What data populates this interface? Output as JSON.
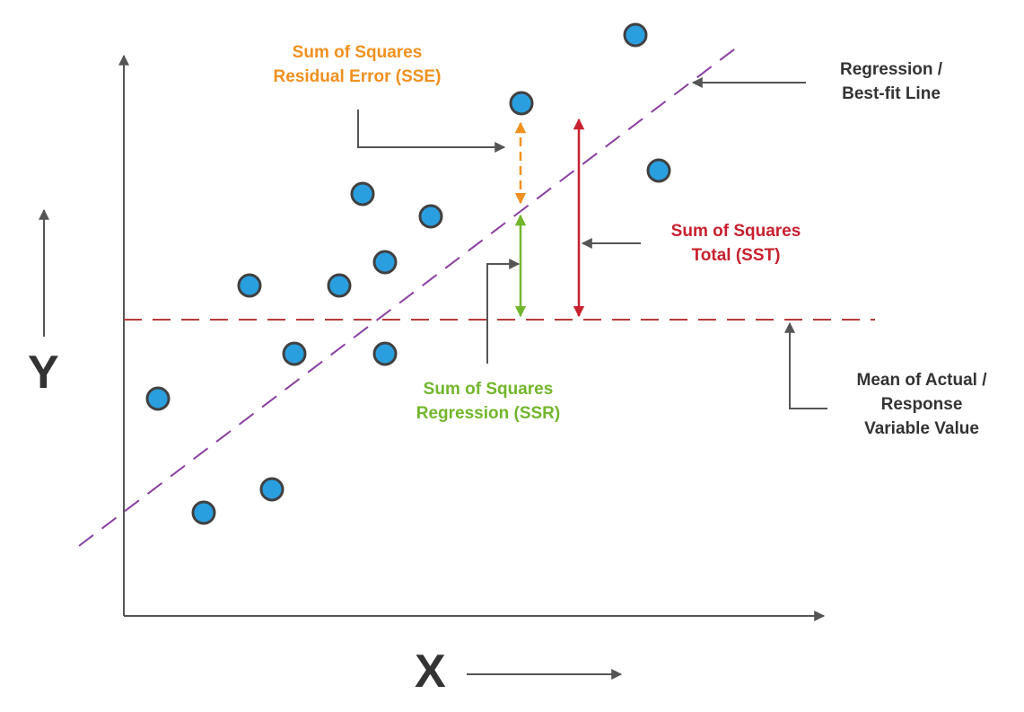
{
  "axes": {
    "x_label": "X",
    "y_label": "Y"
  },
  "labels": {
    "sse": {
      "line1": "Sum of Squares",
      "line2": "Residual Error (SSE)"
    },
    "sst": {
      "line1": "Sum of Squares",
      "line2": "Total (SST)"
    },
    "ssr": {
      "line1": "Sum of Squares",
      "line2": "Regression (SSR)"
    },
    "regression_line": {
      "line1": "Regression /",
      "line2": "Best-fit Line"
    },
    "mean_line": {
      "line1": "Mean of Actual /",
      "line2": "Response",
      "line3": "Variable Value"
    }
  },
  "colors": {
    "sse": "#f0901e",
    "sst": "#c8202e",
    "ssr": "#72b62c",
    "regression_line": "#8a3fa0",
    "mean_line": "#b83a3a",
    "point_fill": "#2a9fe0",
    "point_stroke": "#404040",
    "text_dark": "#333333",
    "axis": "#555555"
  },
  "icons": [
    "data-point-marker",
    "arrow-icon"
  ]
}
